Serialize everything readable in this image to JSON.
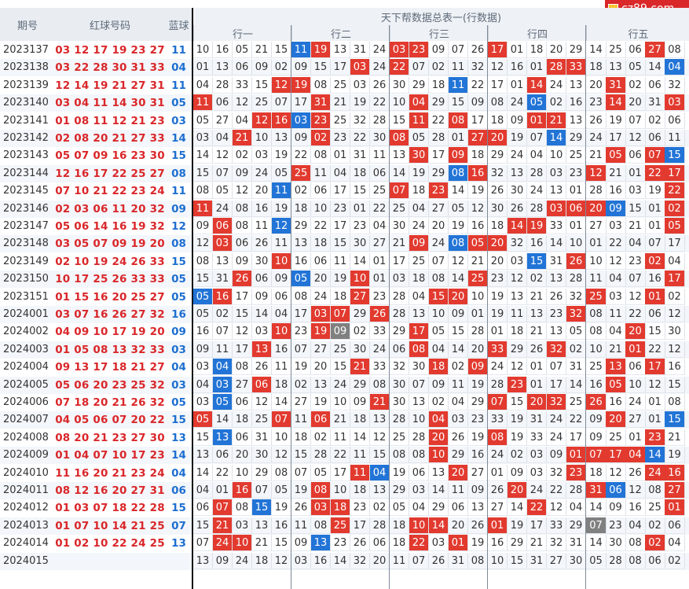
{
  "header": {
    "issue": "期号",
    "red": "红球号码",
    "blue": "蓝球",
    "title": "天下帮数据总表一(行数据)",
    "groups": [
      "行一",
      "行二",
      "行三",
      "行四",
      "行五"
    ]
  },
  "logo": {
    "text": "cz89.com"
  },
  "rows": [
    {
      "issue": "2023137",
      "reds": "03 12 17 19 23 27",
      "blue": "11",
      "cells": "10 16 05 21 15 11 19 13 31 24 03 23 09 07 26 17 01 18 20 29 14 25 06 27 08",
      "hl": {
        "5": "b",
        "6": "r",
        "10": "r",
        "11": "r",
        "15": "r",
        "23": "r"
      }
    },
    {
      "issue": "2023138",
      "reds": "03 22 28 30 31 33",
      "blue": "04",
      "cells": "01 13 06 09 02 09 15 17 03 24 22 07 02 11 32 12 16 01 28 33 18 13 05 14 04",
      "hl": {
        "8": "r",
        "10": "r",
        "18": "r",
        "19": "r",
        "24": "b"
      }
    },
    {
      "issue": "2023139",
      "reds": "12 14 19 21 27 31",
      "blue": "11",
      "cells": "04 28 33 15 12 19 08 25 03 26 30 29 18 11 22 17 01 14 24 13 20 31 02 06 32",
      "hl": {
        "4": "r",
        "5": "r",
        "13": "b",
        "17": "r",
        "21": "r"
      }
    },
    {
      "issue": "2023140",
      "reds": "03 04 11 14 30 31",
      "blue": "05",
      "cells": "11 06 12 25 07 17 31 21 19 22 10 04 29 15 09 08 24 05 02 16 23 14 20 31 03",
      "hl": {
        "0": "r",
        "6": "r",
        "11": "r",
        "17": "b",
        "21": "r",
        "24": "r"
      }
    },
    {
      "issue": "2023141",
      "reds": "01 08 11 12 21 23",
      "blue": "03",
      "cells": "05 27 04 12 16 03 23 25 32 28 15 11 22 08 17 18 09 01 21 13 26 19 07 02 06",
      "hl": {
        "3": "r",
        "4": "r",
        "5": "b",
        "6": "r",
        "11": "r",
        "13": "r",
        "17": "r",
        "18": "r"
      }
    },
    {
      "issue": "2023142",
      "reds": "02 08 20 21 27 33",
      "blue": "14",
      "cells": "03 04 21 10 13 09 02 23 22 30 08 05 28 01 27 20 19 07 14 29 24 17 12 06 11",
      "hl": {
        "2": "r",
        "6": "r",
        "10": "r",
        "14": "r",
        "15": "r",
        "18": "b"
      }
    },
    {
      "issue": "2023143",
      "reds": "05 07 09 16 23 30",
      "blue": "15",
      "cells": "14 12 02 03 19 22 08 01 31 11 13 30 17 09 18 29 24 04 10 25 21 05 06 07 15",
      "hl": {
        "11": "r",
        "13": "r",
        "21": "r",
        "23": "r",
        "24": "b"
      }
    },
    {
      "issue": "2023144",
      "reds": "12 16 17 22 25 27",
      "blue": "08",
      "cells": "15 07 09 24 05 25 11 04 18 06 14 19 29 08 16 32 13 28 03 23 12 21 01 22 17",
      "hl": {
        "5": "r",
        "13": "b",
        "14": "r",
        "20": "r",
        "23": "r",
        "24": "r"
      }
    },
    {
      "issue": "2023145",
      "reds": "07 10 21 22 23 24",
      "blue": "11",
      "cells": "08 05 12 20 11 02 06 17 15 25 07 18 23 14 19 26 30 24 13 01 28 16 03 19 22",
      "hl": {
        "4": "b",
        "10": "r",
        "12": "r",
        "24": "r"
      }
    },
    {
      "issue": "2023146",
      "reds": "02 03 06 11 20 32",
      "blue": "09",
      "cells": "11 24 08 16 19 18 10 23 01 22 25 04 27 05 12 30 26 28 03 06 20 09 15 01 02",
      "hl": {
        "0": "r",
        "18": "r",
        "19": "r",
        "20": "r",
        "21": "b",
        "24": "r"
      }
    },
    {
      "issue": "2023147",
      "reds": "05 06 14 16 19 32",
      "blue": "12",
      "cells": "09 06 08 11 12 29 22 17 23 04 30 24 20 19 16 18 14 19 33 01 27 03 21 01 05",
      "hl": {
        "1": "r",
        "4": "b",
        "16": "r",
        "17": "r",
        "24": "r"
      }
    },
    {
      "issue": "2023148",
      "reds": "03 05 07 09 19 20",
      "blue": "08",
      "cells": "12 03 06 26 11 13 18 15 30 27 21 09 24 08 05 20 32 16 14 10 01 22 04 07 17",
      "hl": {
        "1": "r",
        "11": "r",
        "13": "b",
        "14": "r",
        "15": "r"
      }
    },
    {
      "issue": "2023149",
      "reds": "02 10 19 24 26 33",
      "blue": "15",
      "cells": "08 13 09 30 10 16 06 11 14 01 17 25 07 12 21 20 03 15 31 26 10 12 23 02 04",
      "hl": {
        "4": "r",
        "17": "b",
        "19": "r",
        "23": "r"
      }
    },
    {
      "issue": "2023150",
      "reds": "10 17 25 26 33 33",
      "blue": "05",
      "cells": "15 31 26 06 09 05 20 19 10 01 03 18 08 14 25 23 12 02 13 28 11 04 07 16 17",
      "hl": {
        "2": "r",
        "5": "b",
        "8": "r",
        "14": "r",
        "24": "r"
      }
    },
    {
      "issue": "2023151",
      "reds": "01 15 16 20 25 27",
      "blue": "05",
      "cells": "05 16 17 09 06 08 24 18 27 23 28 04 15 20 10 19 13 21 26 32 25 03 12 01 02",
      "hl": {
        "0": "b",
        "1": "r",
        "8": "r",
        "12": "r",
        "13": "r",
        "20": "r",
        "23": "r"
      }
    },
    {
      "issue": "2024001",
      "reds": "03 07 16 26 27 32",
      "blue": "16",
      "cells": "05 02 15 14 04 17 03 07 29 26 28 13 10 09 01 19 11 13 23 32 08 11 22 06 12",
      "hl": {
        "6": "r",
        "7": "r",
        "9": "r",
        "19": "r"
      }
    },
    {
      "issue": "2024002",
      "reds": "04 09 10 17 19 20",
      "blue": "09",
      "cells": "16 07 12 03 10 23 19 09 02 33 29 17 05 15 28 01 18 21 13 05 08 04 20 15 30",
      "hl": {
        "4": "r",
        "6": "r",
        "7": "g",
        "11": "r",
        "22": "r"
      }
    },
    {
      "issue": "2024003",
      "reds": "01 05 08 13 32 33",
      "blue": "03",
      "cells": "09 11 17 13 16 07 27 25 30 24 06 08 04 14 20 33 29 26 32 02 10 21 01 22 12",
      "hl": {
        "3": "r",
        "11": "r",
        "15": "r",
        "18": "r",
        "22": "r"
      }
    },
    {
      "issue": "2024004",
      "reds": "09 13 17 18 21 27",
      "blue": "04",
      "cells": "03 04 08 26 11 19 20 15 21 33 32 30 18 02 09 24 12 01 07 31 25 13 06 17 16",
      "hl": {
        "1": "b",
        "8": "r",
        "12": "r",
        "14": "r",
        "21": "r",
        "23": "r"
      }
    },
    {
      "issue": "2024005",
      "reds": "05 06 20 23 25 32",
      "blue": "03",
      "cells": "04 03 27 06 18 02 13 24 29 08 30 07 09 11 19 28 23 01 17 14 16 05 10 12 15",
      "hl": {
        "1": "b",
        "3": "r",
        "16": "r",
        "21": "r"
      }
    },
    {
      "issue": "2024006",
      "reds": "07 18 20 21 26 32",
      "blue": "05",
      "cells": "03 05 06 12 14 27 19 10 09 21 30 13 02 04 29 07 15 20 32 25 26 16 24 01 08",
      "hl": {
        "1": "b",
        "9": "r",
        "15": "r",
        "17": "r",
        "18": "r",
        "20": "r"
      }
    },
    {
      "issue": "2024007",
      "reds": "04 05 06 07 20 22",
      "blue": "15",
      "cells": "05 14 18 25 07 11 06 21 18 13 28 10 04 03 23 33 19 31 24 22 09 20 27 01 15",
      "hl": {
        "0": "r",
        "4": "r",
        "6": "r",
        "12": "r",
        "21": "r",
        "24": "b"
      }
    },
    {
      "issue": "2024008",
      "reds": "08 20 21 23 27 30",
      "blue": "13",
      "cells": "15 13 06 31 10 18 02 11 14 12 25 28 20 26 19 08 19 33 24 17 09 25 01 23 21",
      "hl": {
        "1": "b",
        "12": "r",
        "15": "r",
        "23": "r"
      }
    },
    {
      "issue": "2024009",
      "reds": "01 04 07 10 17 23",
      "blue": "14",
      "cells": "13 06 20 30 12 15 28 22 11 15 08 08 10 29 16 24 02 03 09 01 07 17 04 14 19",
      "hl": {
        "12": "r",
        "19": "r",
        "20": "r",
        "21": "r",
        "22": "r",
        "23": "b"
      }
    },
    {
      "issue": "2024010",
      "reds": "11 16 20 21 23 24",
      "blue": "04",
      "cells": "14 22 10 29 08 07 05 17 11 04 19 06 13 20 27 01 09 03 32 23 18 12 26 24 16",
      "hl": {
        "8": "r",
        "9": "b",
        "13": "r",
        "19": "r",
        "23": "r",
        "24": "r"
      }
    },
    {
      "issue": "2024011",
      "reds": "08 12 16 20 27 31",
      "blue": "06",
      "cells": "04 01 16 07 05 19 08 10 18 13 29 03 14 11 09 26 20 24 22 28 31 06 12 08 27",
      "hl": {
        "2": "r",
        "6": "r",
        "16": "r",
        "20": "r",
        "21": "b",
        "24": "r"
      }
    },
    {
      "issue": "2024012",
      "reds": "01 03 07 18 22 28",
      "blue": "15",
      "cells": "06 07 08 15 19 26 03 18 23 02 05 04 29 06 13 27 14 22 12 04 14 09 16 25 01",
      "hl": {
        "1": "r",
        "3": "b",
        "6": "r",
        "7": "r",
        "17": "r",
        "24": "r"
      }
    },
    {
      "issue": "2024013",
      "reds": "01 07 10 14 21 25",
      "blue": "07",
      "cells": "15 21 03 13 16 11 08 25 17 28 18 10 14 20 26 01 19 17 33 29 07 23 04 02 06",
      "hl": {
        "1": "r",
        "7": "r",
        "11": "r",
        "12": "r",
        "15": "r",
        "20": "g"
      }
    },
    {
      "issue": "2024014",
      "reds": "01 02 10 22 24 25",
      "blue": "13",
      "cells": "07 24 10 21 15 09 13 23 26 06 18 22 03 01 19 16 29 21 32 31 14 30 08 02 04",
      "hl": {
        "1": "r",
        "2": "r",
        "6": "b",
        "11": "r",
        "13": "r",
        "23": "r"
      }
    },
    {
      "issue": "2024015",
      "reds": "",
      "blue": "",
      "cells": "13 09 24 18 12 03 16 14 32 20 11 07 26 31 08 10 15 31 27 30 05 28 08 06 02",
      "hl": {}
    }
  ],
  "colors": {
    "red": "#e23a2f",
    "blue": "#2274d6",
    "gray": "#808080",
    "header_bg": "#e9edf2",
    "red_text": "#d9272a",
    "blue_text": "#1d6fd0"
  }
}
